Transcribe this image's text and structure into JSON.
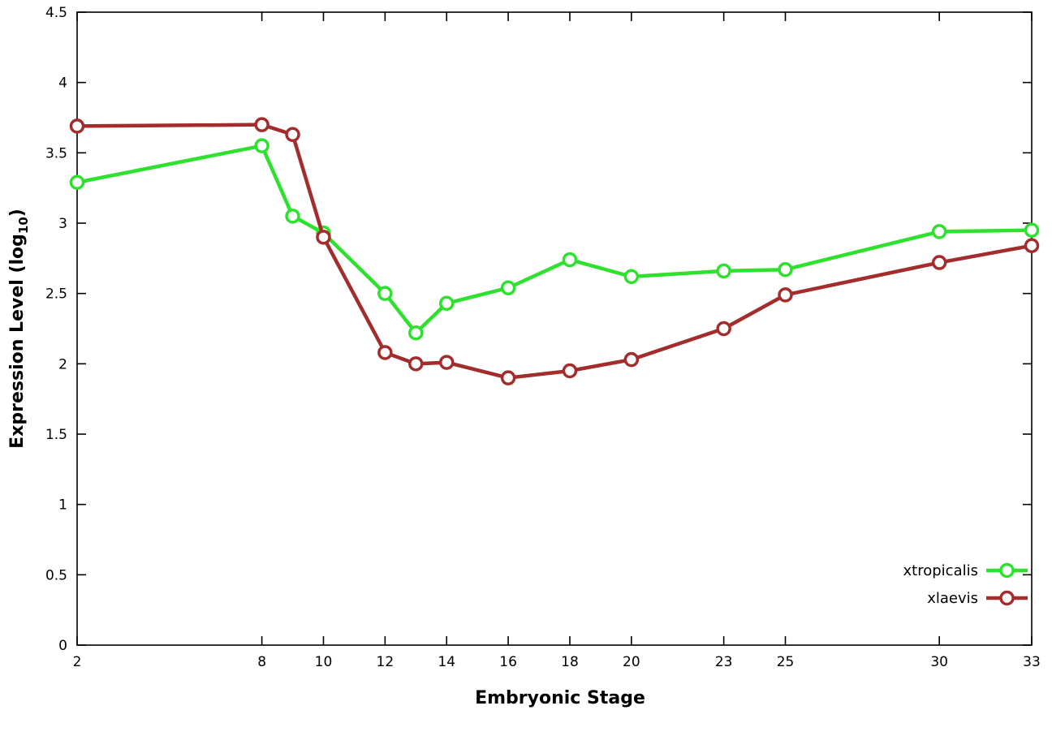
{
  "chart_data": {
    "type": "line",
    "title": "",
    "xlabel": "Embryonic Stage",
    "ylabel": "Expression Level (log10)",
    "ylabel_main": "Expression Level (log",
    "ylabel_sub": "10",
    "ylabel_close": ")",
    "xlim": [
      2,
      33
    ],
    "ylim": [
      0,
      4.5
    ],
    "x_ticks": [
      2,
      8,
      10,
      12,
      14,
      16,
      18,
      20,
      23,
      25,
      30,
      33
    ],
    "x_tick_labels": [
      "2",
      "8",
      "10",
      "12",
      "14",
      "16",
      "18",
      "20",
      "23",
      "25",
      "30",
      "33"
    ],
    "y_ticks": [
      0,
      0.5,
      1,
      1.5,
      2,
      2.5,
      3,
      3.5,
      4,
      4.5
    ],
    "y_tick_labels": [
      "0",
      "0.5",
      "1",
      "1.5",
      "2",
      "2.5",
      "3",
      "3.5",
      "4",
      "4.5"
    ],
    "x": [
      2,
      8,
      9,
      10,
      12,
      13,
      14,
      16,
      18,
      20,
      23,
      25,
      30,
      33
    ],
    "series": [
      {
        "name": "xtropicalis",
        "color": "#2ee12e",
        "values": [
          3.29,
          3.55,
          3.05,
          2.93,
          2.5,
          2.22,
          2.43,
          2.54,
          2.74,
          2.62,
          2.66,
          2.67,
          2.94,
          2.95
        ]
      },
      {
        "name": "xlaevis",
        "color": "#a32c2c",
        "values": [
          3.69,
          3.7,
          3.63,
          2.9,
          2.08,
          2.0,
          2.01,
          1.9,
          1.95,
          2.03,
          2.25,
          2.49,
          2.72,
          2.84
        ]
      }
    ],
    "legend": {
      "position": "bottom-right",
      "entries": [
        "xtropicalis",
        "xlaevis"
      ]
    },
    "grid": false,
    "marker": "open-circle",
    "background": "#ffffff",
    "border_color": "#000000"
  }
}
